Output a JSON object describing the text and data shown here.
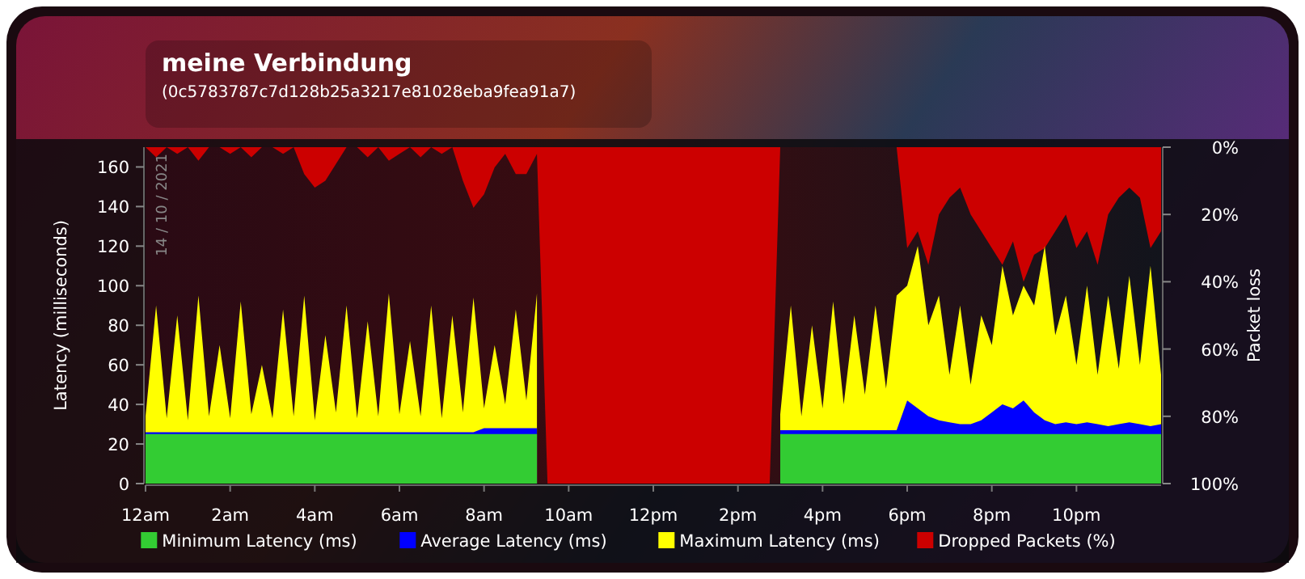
{
  "chart_data": {
    "type": "area",
    "title": "meine Verbindung",
    "subtitle": "(0c5783787c7d128b25a3217e81028eba9fea91a7)",
    "ylabel": "Latency  (milliseconds)",
    "y2label": "Packet loss",
    "annotations": [
      "14 / 10 / 2021"
    ],
    "x": [
      "2021-10-14T00:00",
      "2021-10-14T00:15",
      "2021-10-14T00:30",
      "2021-10-14T00:45",
      "2021-10-14T01:00",
      "2021-10-14T01:15",
      "2021-10-14T01:30",
      "2021-10-14T01:45",
      "2021-10-14T02:00",
      "2021-10-14T02:15",
      "2021-10-14T02:30",
      "2021-10-14T02:45",
      "2021-10-14T03:00",
      "2021-10-14T03:15",
      "2021-10-14T03:30",
      "2021-10-14T03:45",
      "2021-10-14T04:00",
      "2021-10-14T04:15",
      "2021-10-14T04:30",
      "2021-10-14T04:45",
      "2021-10-14T05:00",
      "2021-10-14T05:15",
      "2021-10-14T05:30",
      "2021-10-14T05:45",
      "2021-10-14T06:00",
      "2021-10-14T06:15",
      "2021-10-14T06:30",
      "2021-10-14T06:45",
      "2021-10-14T07:00",
      "2021-10-14T07:15",
      "2021-10-14T07:30",
      "2021-10-14T07:45",
      "2021-10-14T08:00",
      "2021-10-14T08:15",
      "2021-10-14T08:30",
      "2021-10-14T08:45",
      "2021-10-14T09:00",
      "2021-10-14T09:15",
      "2021-10-14T09:30",
      "2021-10-14T09:45",
      "2021-10-14T10:00",
      "2021-10-14T10:15",
      "2021-10-14T10:30",
      "2021-10-14T10:45",
      "2021-10-14T11:00",
      "2021-10-14T11:15",
      "2021-10-14T11:30",
      "2021-10-14T11:45",
      "2021-10-14T12:00",
      "2021-10-14T12:15",
      "2021-10-14T12:30",
      "2021-10-14T12:45",
      "2021-10-14T13:00",
      "2021-10-14T13:15",
      "2021-10-14T13:30",
      "2021-10-14T13:45",
      "2021-10-14T14:00",
      "2021-10-14T14:15",
      "2021-10-14T14:30",
      "2021-10-14T14:45",
      "2021-10-14T15:00",
      "2021-10-14T15:15",
      "2021-10-14T15:30",
      "2021-10-14T15:45",
      "2021-10-14T16:00",
      "2021-10-14T16:15",
      "2021-10-14T16:30",
      "2021-10-14T16:45",
      "2021-10-14T17:00",
      "2021-10-14T17:15",
      "2021-10-14T17:30",
      "2021-10-14T17:45",
      "2021-10-14T18:00",
      "2021-10-14T18:15",
      "2021-10-14T18:30",
      "2021-10-14T18:45",
      "2021-10-14T19:00",
      "2021-10-14T19:15",
      "2021-10-14T19:30",
      "2021-10-14T19:45",
      "2021-10-14T20:00",
      "2021-10-14T20:15",
      "2021-10-14T20:30",
      "2021-10-14T20:45",
      "2021-10-14T21:00",
      "2021-10-14T21:15",
      "2021-10-14T21:30",
      "2021-10-14T21:45",
      "2021-10-14T22:00",
      "2021-10-14T22:15",
      "2021-10-14T22:30",
      "2021-10-14T22:45",
      "2021-10-14T23:00",
      "2021-10-14T23:15",
      "2021-10-14T23:30",
      "2021-10-14T23:45",
      "2021-10-15T00:00"
    ],
    "xlim": [
      "2021-10-14T00:00",
      "2021-10-15T00:00"
    ],
    "xticks": [
      {
        "value": "2021-10-14T00:00",
        "label": "12am"
      },
      {
        "value": "2021-10-14T02:00",
        "label": "2am"
      },
      {
        "value": "2021-10-14T04:00",
        "label": "4am"
      },
      {
        "value": "2021-10-14T06:00",
        "label": "6am"
      },
      {
        "value": "2021-10-14T08:00",
        "label": "8am"
      },
      {
        "value": "2021-10-14T10:00",
        "label": "10am"
      },
      {
        "value": "2021-10-14T12:00",
        "label": "12pm"
      },
      {
        "value": "2021-10-14T14:00",
        "label": "2pm"
      },
      {
        "value": "2021-10-14T16:00",
        "label": "4pm"
      },
      {
        "value": "2021-10-14T18:00",
        "label": "6pm"
      },
      {
        "value": "2021-10-14T20:00",
        "label": "8pm"
      },
      {
        "value": "2021-10-14T22:00",
        "label": "10pm"
      }
    ],
    "ylim": [
      0,
      170
    ],
    "yticks": [
      0,
      20,
      40,
      60,
      80,
      100,
      120,
      140,
      160
    ],
    "y2lim": [
      100,
      0
    ],
    "y2ticks": [
      {
        "value": 0,
        "label": "0%"
      },
      {
        "value": 20,
        "label": "20%"
      },
      {
        "value": 40,
        "label": "40%"
      },
      {
        "value": 60,
        "label": "60%"
      },
      {
        "value": 80,
        "label": "80%"
      },
      {
        "value": 100,
        "label": "100%"
      }
    ],
    "legend": "bottom",
    "series": [
      {
        "name": "Dropped Packets (%)",
        "color": "#cc0000",
        "axis": "y2",
        "values": [
          0,
          3,
          0,
          2,
          0,
          4,
          0,
          0,
          2,
          0,
          3,
          0,
          0,
          2,
          0,
          8,
          12,
          10,
          5,
          0,
          0,
          3,
          0,
          4,
          2,
          0,
          3,
          0,
          2,
          0,
          10,
          18,
          14,
          6,
          2,
          8,
          8,
          2,
          100,
          100,
          100,
          100,
          100,
          100,
          100,
          100,
          100,
          100,
          100,
          100,
          100,
          100,
          100,
          100,
          100,
          100,
          100,
          100,
          100,
          100,
          0,
          0,
          0,
          0,
          0,
          0,
          0,
          0,
          0,
          0,
          0,
          0,
          30,
          25,
          35,
          20,
          15,
          12,
          20,
          25,
          30,
          35,
          28,
          40,
          32,
          30,
          25,
          20,
          30,
          25,
          35,
          20,
          15,
          12,
          15,
          30,
          25
        ]
      },
      {
        "name": "Maximum Latency (ms)",
        "color": "#ffff00",
        "values": [
          34,
          90,
          33,
          85,
          32,
          95,
          34,
          70,
          33,
          92,
          35,
          60,
          33,
          88,
          34,
          95,
          32,
          75,
          36,
          90,
          33,
          82,
          34,
          96,
          35,
          72,
          34,
          90,
          33,
          85,
          36,
          94,
          38,
          70,
          40,
          88,
          42,
          96,
          null,
          null,
          null,
          null,
          null,
          null,
          null,
          null,
          null,
          null,
          null,
          null,
          null,
          null,
          null,
          null,
          null,
          null,
          null,
          null,
          null,
          null,
          35,
          90,
          34,
          80,
          38,
          92,
          40,
          85,
          45,
          90,
          48,
          95,
          100,
          120,
          80,
          95,
          55,
          90,
          50,
          85,
          70,
          110,
          85,
          100,
          90,
          120,
          75,
          95,
          60,
          100,
          55,
          95,
          58,
          105,
          60,
          110,
          55
        ]
      },
      {
        "name": "Average Latency (ms)",
        "color": "#0000ff",
        "values": [
          26,
          26,
          26,
          26,
          26,
          26,
          26,
          26,
          26,
          26,
          26,
          26,
          26,
          26,
          26,
          26,
          26,
          26,
          26,
          26,
          26,
          26,
          26,
          26,
          26,
          26,
          26,
          26,
          26,
          26,
          26,
          26,
          28,
          28,
          28,
          28,
          28,
          28,
          null,
          null,
          null,
          null,
          null,
          null,
          null,
          null,
          null,
          null,
          null,
          null,
          null,
          null,
          null,
          null,
          null,
          null,
          null,
          null,
          null,
          null,
          27,
          27,
          27,
          27,
          27,
          27,
          27,
          27,
          27,
          27,
          27,
          27,
          42,
          38,
          34,
          32,
          31,
          30,
          30,
          32,
          36,
          40,
          38,
          42,
          36,
          32,
          30,
          31,
          30,
          31,
          30,
          29,
          30,
          31,
          30,
          29,
          30
        ]
      },
      {
        "name": "Minimum Latency (ms)",
        "color": "#33cc33",
        "values": [
          25,
          25,
          25,
          25,
          25,
          25,
          25,
          25,
          25,
          25,
          25,
          25,
          25,
          25,
          25,
          25,
          25,
          25,
          25,
          25,
          25,
          25,
          25,
          25,
          25,
          25,
          25,
          25,
          25,
          25,
          25,
          25,
          25,
          25,
          25,
          25,
          25,
          25,
          null,
          null,
          null,
          null,
          null,
          null,
          null,
          null,
          null,
          null,
          null,
          null,
          null,
          null,
          null,
          null,
          null,
          null,
          null,
          null,
          null,
          null,
          25,
          25,
          25,
          25,
          25,
          25,
          25,
          25,
          25,
          25,
          25,
          25,
          25,
          25,
          25,
          25,
          25,
          25,
          25,
          25,
          25,
          25,
          25,
          25,
          25,
          25,
          25,
          25,
          25,
          25,
          25,
          25,
          25,
          25,
          25,
          25,
          25
        ]
      }
    ]
  }
}
